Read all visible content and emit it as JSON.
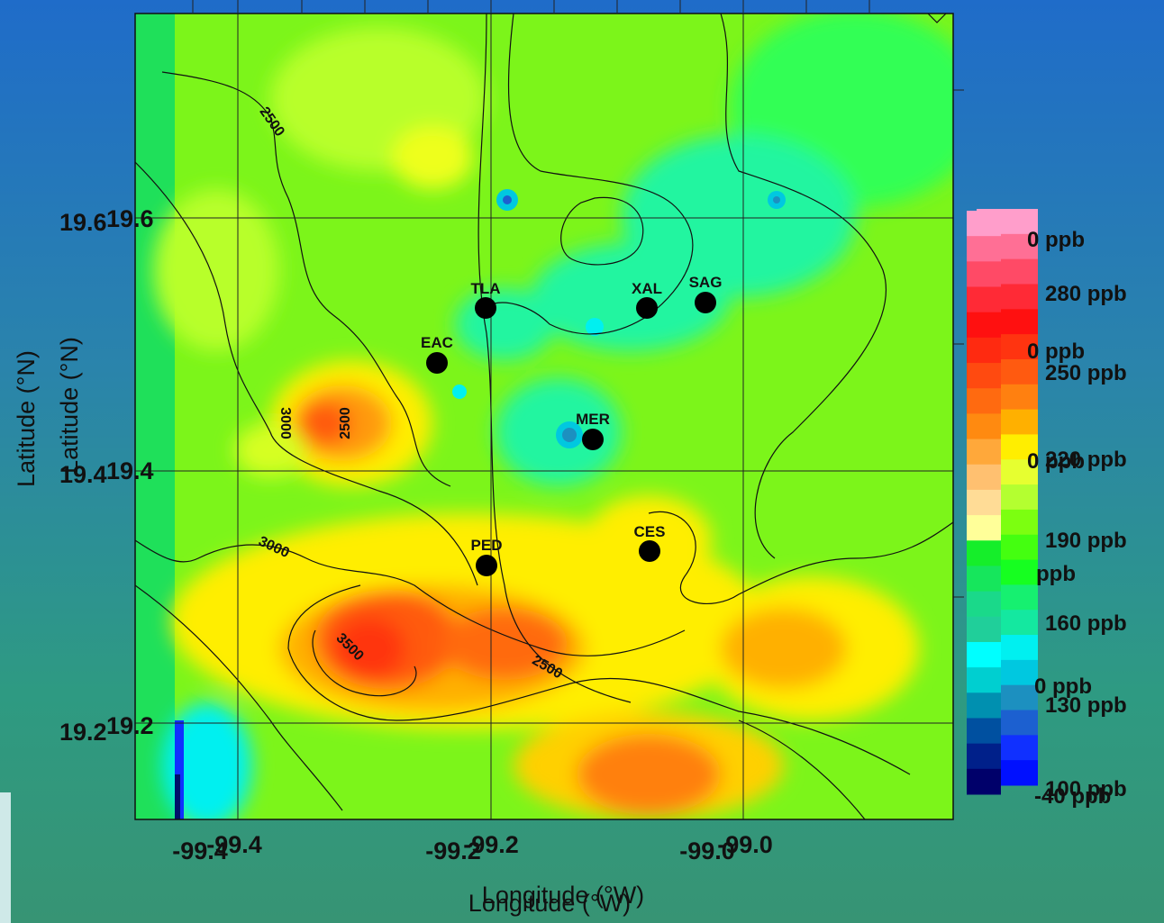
{
  "map": {
    "axes": {
      "x_label": "Longitude (°W)",
      "y_label": "Latitude (°N)",
      "x_ticks": [
        "-99.4",
        "-99.2",
        "-99.0"
      ],
      "y_ticks": [
        "19.6",
        "19.4",
        "19.2"
      ]
    },
    "stations": [
      {
        "code": "TLA"
      },
      {
        "code": "EAC"
      },
      {
        "code": "XAL"
      },
      {
        "code": "SAG"
      },
      {
        "code": "MER"
      },
      {
        "code": "PED"
      },
      {
        "code": "CES"
      }
    ],
    "contour_labels": [
      "2500",
      "3000",
      "2500",
      "3000",
      "3500",
      "2500"
    ],
    "colorbar": {
      "labels": [
        "280 ppb",
        "250 ppb",
        "220 ppb",
        "190 ppb",
        "160 ppb",
        "130 ppb",
        "100 ppb"
      ],
      "behind_fragments": [
        "0 ppb",
        "0 ppb",
        "0 ppb",
        "ppb",
        "0 ppb",
        "-40 ppb"
      ],
      "colors_top_to_bottom": [
        "#ff9ecb",
        "#ff6f95",
        "#ff4a66",
        "#ff2a36",
        "#ff1010",
        "#ff2a10",
        "#ff4a10",
        "#ff6a10",
        "#ff8a10",
        "#ffa83a",
        "#ffc070",
        "#ffdc96",
        "#ffff99",
        "#15ee2a",
        "#16e65c",
        "#1ad98a",
        "#20cf9a",
        "#00ffff",
        "#00cfd0",
        "#0090b0",
        "#0050a0",
        "#00208a",
        "#00006a"
      ],
      "colors_behind": [
        "#ff9ecb",
        "#ff6f95",
        "#ff4a66",
        "#ff2a36",
        "#ff1010",
        "#ff3410",
        "#ff5a10",
        "#ff8010",
        "#ffb000",
        "#ffee00",
        "#e6ff30",
        "#b4ff30",
        "#7cff10",
        "#44ff10",
        "#16ff20",
        "#16f070",
        "#14e8a0",
        "#00f0f0",
        "#00c8e0",
        "#1c90c0",
        "#1c60d0",
        "#1030ff",
        "#0010ff"
      ]
    }
  }
}
